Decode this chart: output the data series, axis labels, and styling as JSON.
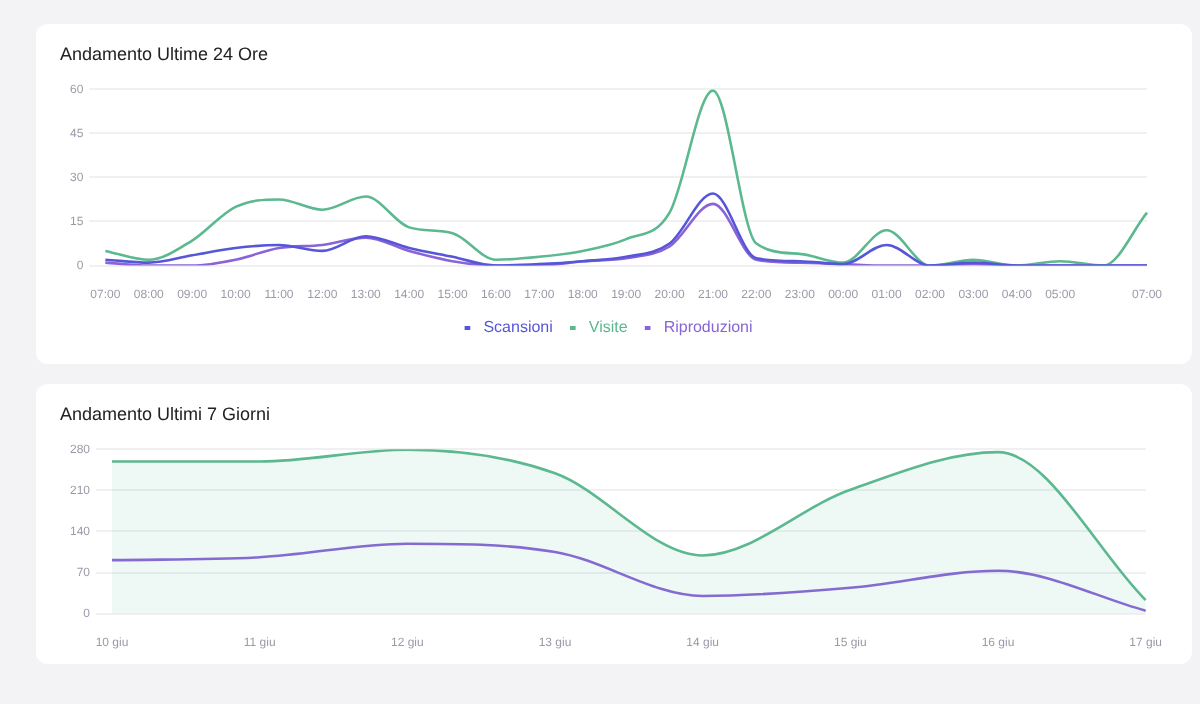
{
  "chart_data": [
    {
      "type": "line",
      "title": "Andamento Ultime 24 Ore",
      "categories": [
        "07:00",
        "08:00",
        "09:00",
        "10:00",
        "11:00",
        "12:00",
        "13:00",
        "14:00",
        "15:00",
        "16:00",
        "17:00",
        "18:00",
        "19:00",
        "20:00",
        "21:00",
        "22:00",
        "23:00",
        "00:00",
        "01:00",
        "02:00",
        "03:00",
        "04:00",
        "05:00",
        null,
        "07:00"
      ],
      "series": [
        {
          "name": "Scansioni",
          "color": "#5656d8",
          "values": [
            2,
            1,
            3.5,
            6,
            7,
            5,
            10,
            6,
            3,
            0,
            0.5,
            1.5,
            3,
            7.5,
            24.5,
            2.5,
            1.5,
            0.5,
            7,
            0,
            1,
            0,
            0,
            0,
            0
          ]
        },
        {
          "name": "Visite",
          "color": "#5cb88f",
          "values": [
            5,
            2,
            8.5,
            20,
            22.5,
            19,
            23.5,
            13,
            11,
            2,
            3,
            5,
            9,
            18,
            59.5,
            7.5,
            4,
            1,
            12,
            0,
            2,
            0,
            1.5,
            0,
            18
          ]
        },
        {
          "name": "Riproduzioni",
          "color": "#8a63d8",
          "values": [
            1,
            0,
            0,
            2,
            6,
            7,
            9.5,
            5,
            1.5,
            0,
            0,
            1.5,
            2.5,
            6.5,
            21,
            2,
            1,
            0.5,
            0,
            0,
            0.5,
            0,
            0,
            0,
            0
          ]
        }
      ],
      "ylim": [
        0,
        60
      ],
      "yticks": [
        0,
        15,
        30,
        45,
        60
      ],
      "grid": "y",
      "legend": "bottom",
      "marker": "none",
      "line_style": "solid"
    },
    {
      "type": "area",
      "title": "Andamento Ultimi 7 Giorni",
      "categories": [
        "10 giu",
        "11 giu",
        "12 giu",
        "13 giu",
        "14 giu",
        "15 giu",
        "16 giu",
        "17 giu"
      ],
      "series": [
        {
          "color": "#5cb88f",
          "values": [
            259,
            259,
            279,
            239,
            99,
            211,
            275,
            23
          ]
        },
        {
          "type": "line",
          "color": "#8a63d8",
          "values": [
            91,
            96,
            119,
            105,
            30,
            44,
            73,
            5
          ]
        }
      ],
      "ylim": [
        0,
        280
      ],
      "yticks": [
        0,
        70,
        140,
        210,
        280
      ],
      "grid": "y",
      "marker": "none",
      "line_style": "solid"
    }
  ]
}
